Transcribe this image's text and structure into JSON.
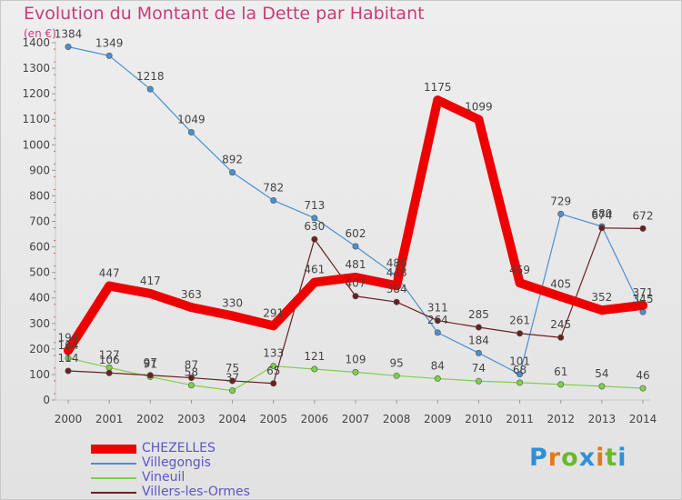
{
  "title": "Evolution du Montant de la Dette par Habitant",
  "unit": "(en €)",
  "logo": {
    "letters": [
      "P",
      "r",
      "o",
      "x",
      "i",
      "t",
      "i"
    ],
    "colors": [
      "#2f8fd8",
      "#e07a1c",
      "#6ab82c",
      "#2f8fd8",
      "#e07a1c",
      "#6ab82c",
      "#2f8fd8"
    ]
  },
  "chart_data": {
    "type": "line",
    "title": "Evolution du Montant de la Dette par Habitant",
    "ylabel": "(en €)",
    "ylim": [
      0,
      1400
    ],
    "yticks": [
      0,
      100,
      200,
      300,
      400,
      500,
      600,
      700,
      800,
      900,
      1000,
      1100,
      1200,
      1300,
      1400
    ],
    "categories": [
      "2000",
      "2001",
      "2002",
      "2003",
      "2004",
      "2005",
      "2006",
      "2007",
      "2008",
      "2009",
      "2010",
      "2011",
      "2012",
      "2013",
      "2014"
    ],
    "grid": false,
    "legend_placement": "bottom-left",
    "series": [
      {
        "name": "CHEZELLES",
        "color": "#ee0000",
        "emphasis": true,
        "values": [
          194,
          447,
          417,
          363,
          330,
          291,
          461,
          481,
          448,
          1175,
          1099,
          459,
          405,
          352,
          371
        ],
        "labels": [
          "194",
          "447",
          "417",
          "363",
          "330",
          "291",
          "461",
          "481",
          "448",
          "1175",
          "1099",
          "459",
          "405",
          "352",
          "371"
        ]
      },
      {
        "name": "Villegongis",
        "color": "#4a8fd0",
        "emphasis": false,
        "values": [
          1384,
          1349,
          1218,
          1049,
          892,
          782,
          713,
          602,
          486,
          264,
          184,
          101,
          729,
          680,
          345
        ],
        "labels": [
          "1384",
          "1349",
          "1218",
          "1049",
          "892",
          "782",
          "713",
          "602",
          "486",
          "264",
          "184",
          "101",
          "729",
          "680",
          "345"
        ]
      },
      {
        "name": "Vineuil",
        "color": "#7ed04a",
        "emphasis": false,
        "values": [
          164,
          127,
          91,
          58,
          37,
          133,
          121,
          109,
          95,
          84,
          74,
          68,
          61,
          54,
          46
        ],
        "labels": [
          "164",
          "127",
          "91",
          "58",
          "37",
          "133",
          "121",
          "109",
          "95",
          "84",
          "74",
          "68",
          "61",
          "54",
          "46"
        ]
      },
      {
        "name": "Villers-les-Ormes",
        "color": "#6b1f1f",
        "emphasis": false,
        "values": [
          114,
          106,
          97,
          87,
          75,
          65,
          630,
          407,
          384,
          311,
          285,
          261,
          245,
          674,
          672
        ],
        "labels": [
          "114",
          "106",
          "97",
          "87",
          "75",
          "65",
          "630",
          "407",
          "384",
          "311",
          "285",
          "261",
          "245",
          "674",
          "672"
        ]
      }
    ]
  }
}
